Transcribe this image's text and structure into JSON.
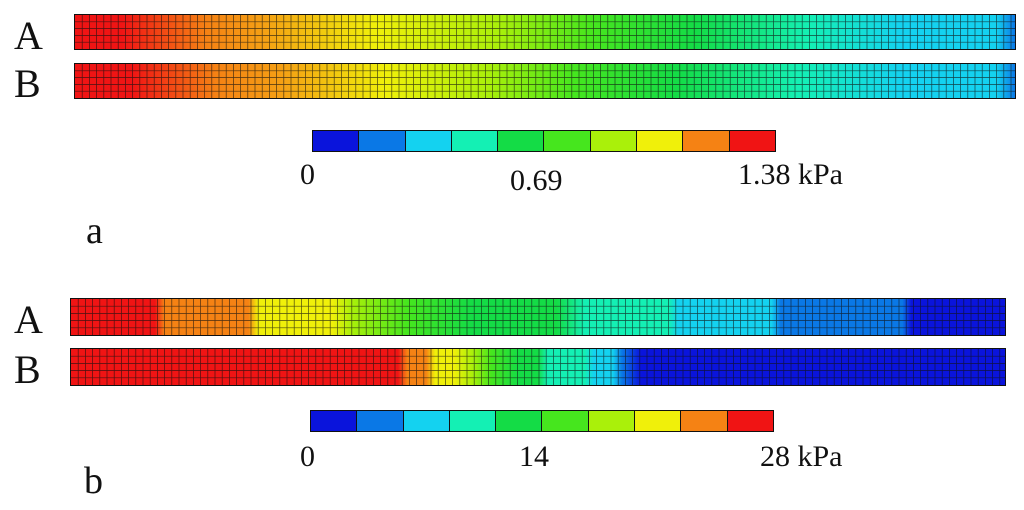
{
  "palette": [
    "#0a14dc",
    "#0a78e6",
    "#14d2f0",
    "#14f0b4",
    "#14dc46",
    "#46e61e",
    "#aaf00a",
    "#f0f00a",
    "#f58214",
    "#f01414"
  ],
  "panels": [
    {
      "letter": "a",
      "strips": [
        {
          "label": "A",
          "gradient": "linear-gradient(90deg,#f01414 0%,#f01414 5%,#f58214 14%,#f5a014 20%,#f0f00a 32%,#aaf00a 45%,#46e61e 55%,#14dc46 66%,#14f0b4 78%,#14d2f0 88%,#14d2f0 98%,#0a78e6 100%)"
        },
        {
          "label": "B",
          "gradient": "linear-gradient(90deg,#f01414 0%,#f01414 6%,#f58214 15%,#f5a014 22%,#f0f00a 33%,#aaf00a 44%,#46e61e 53%,#14dc46 64%,#14f0b4 77%,#14d2f0 88%,#14d2f0 98%,#0a78e6 100%)"
        }
      ],
      "scale_labels": [
        "0",
        "0.69",
        "1.38 kPa"
      ]
    },
    {
      "letter": "b",
      "strips": [
        {
          "label": "A",
          "gradient": "linear-gradient(90deg,#f01414 0%,#f01414 9%,#f58214 10%,#f58214 19%,#f0f00a 20%,#f0f00a 28%,#aaf00a 30%,#46e61e 36%,#14dc46 43%,#14dc46 52%,#14f0b4 55%,#14f0b4 64%,#14d2f0 65%,#14d2f0 75%,#0a78e6 76%,#0a78e6 89%,#0a14dc 90%,#0a14dc 100%)"
        },
        {
          "label": "B",
          "gradient": "linear-gradient(90deg,#f01414 0%,#f01414 35%,#f58214 36%,#f58214 38%,#f0f00a 39%,#f0f00a 41%,#aaf00a 43%,#46e61e 45%,#14dc46 48%,#14dc46 50%,#14f0b4 51%,#14f0b4 55%,#14d2f0 56%,#14d2f0 58%,#0a78e6 59%,#0a14dc 61%,#0a14dc 100%)"
        }
      ],
      "scale_labels": [
        "0",
        "14",
        "28 kPa"
      ]
    }
  ]
}
